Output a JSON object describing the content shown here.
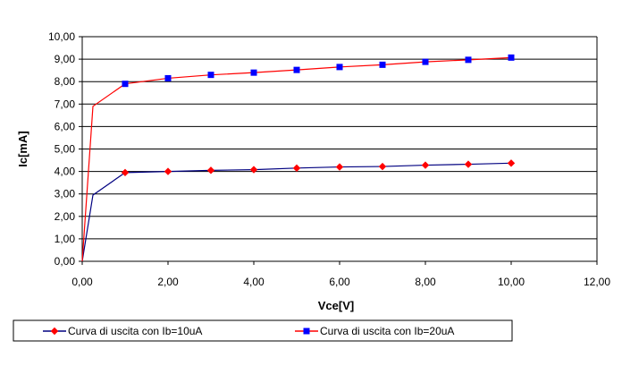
{
  "chart_data": {
    "type": "line",
    "xlabel": "Vce[V]",
    "ylabel": "Ic[mA]",
    "xlim": [
      0,
      12
    ],
    "ylim": [
      0,
      10
    ],
    "x_ticks": [
      "0,00",
      "2,00",
      "4,00",
      "6,00",
      "8,00",
      "10,00",
      "12,00"
    ],
    "y_ticks": [
      "0,00",
      "1,00",
      "2,00",
      "3,00",
      "4,00",
      "5,00",
      "6,00",
      "7,00",
      "8,00",
      "9,00",
      "10,00"
    ],
    "grid": "horizontal",
    "legend_placement": "bottom",
    "series": [
      {
        "name": "Curva di uscita con Ib=10uA",
        "line_color": "#000080",
        "marker_color": "#ff0000",
        "marker": "diamond",
        "points": [
          [
            0,
            0
          ],
          [
            0.25,
            2.95
          ],
          [
            1,
            3.95
          ],
          [
            2,
            4.0
          ],
          [
            3,
            4.05
          ],
          [
            4,
            4.08
          ],
          [
            5,
            4.15
          ],
          [
            6,
            4.2
          ],
          [
            7,
            4.22
          ],
          [
            8,
            4.28
          ],
          [
            9,
            4.32
          ],
          [
            10,
            4.37
          ]
        ]
      },
      {
        "name": "Curva di uscita con Ib=20uA",
        "line_color": "#ff0000",
        "marker_color": "#0000ff",
        "marker": "square",
        "points": [
          [
            0,
            0
          ],
          [
            0.25,
            6.9
          ],
          [
            1,
            7.9
          ],
          [
            2,
            8.15
          ],
          [
            3,
            8.3
          ],
          [
            4,
            8.4
          ],
          [
            5,
            8.52
          ],
          [
            6,
            8.65
          ],
          [
            7,
            8.75
          ],
          [
            8,
            8.88
          ],
          [
            9,
            8.97
          ],
          [
            10,
            9.07
          ]
        ]
      }
    ]
  }
}
